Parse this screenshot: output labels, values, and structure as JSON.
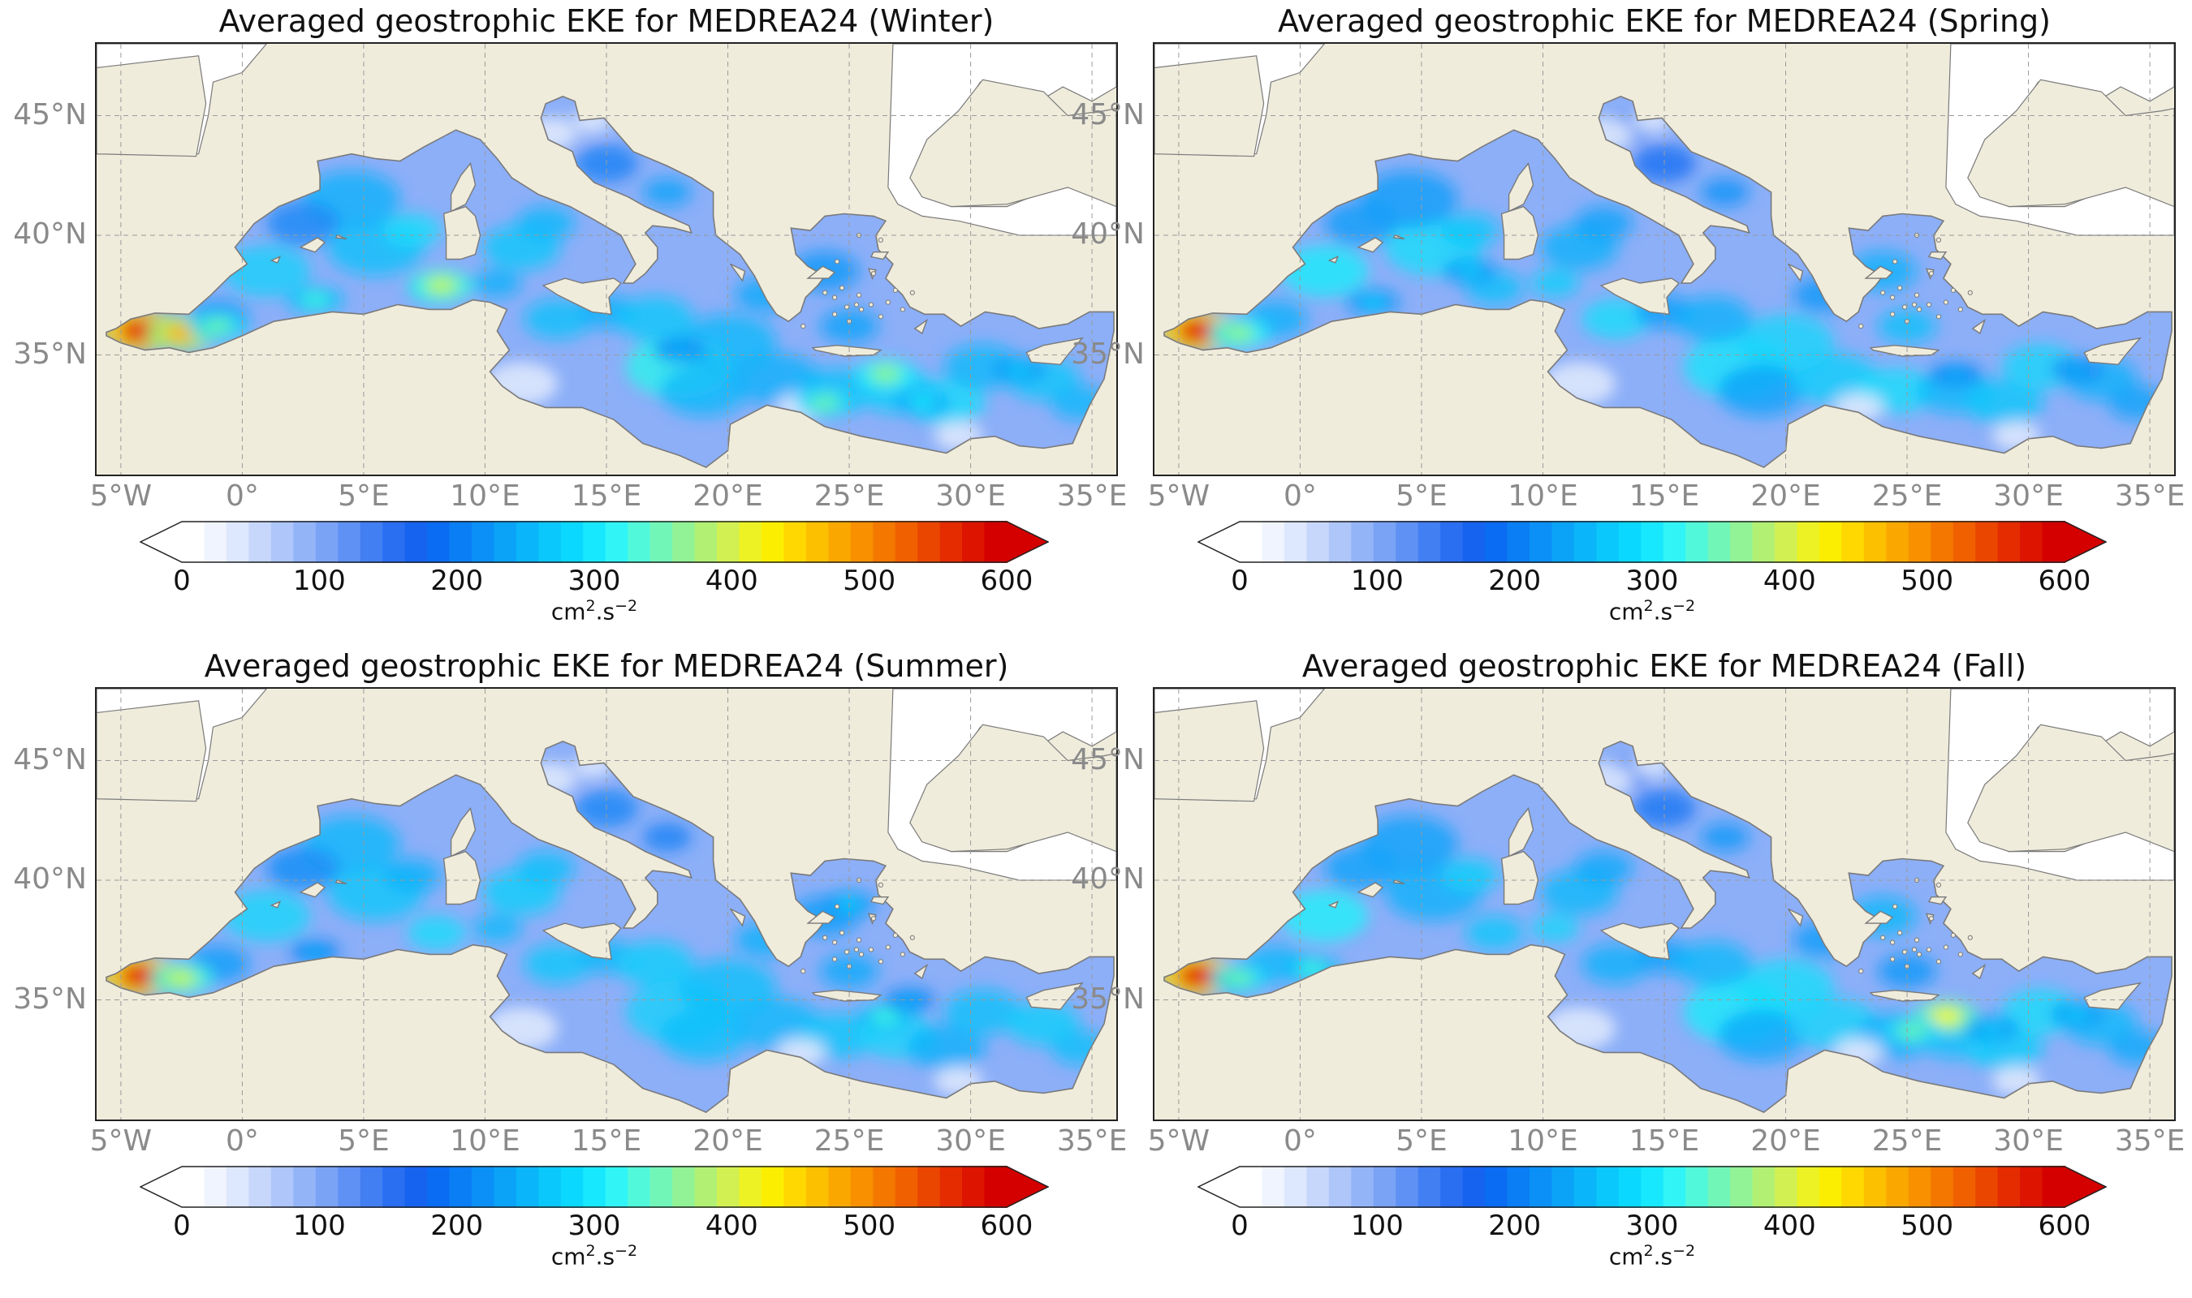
{
  "panels": [
    {
      "id": "winter",
      "title": "Averaged geostrophic EKE for MEDREA24 (Winter)",
      "hotspots": [
        [
          -4.2,
          36.0,
          0.95
        ],
        [
          -2.5,
          35.9,
          0.75
        ],
        [
          -1,
          36.2,
          0.5
        ],
        [
          8.2,
          37.9,
          0.6
        ],
        [
          3,
          37.3,
          0.45
        ],
        [
          26.5,
          34.2,
          0.55
        ],
        [
          24,
          33.0,
          0.5
        ],
        [
          28,
          33.0,
          0.4
        ],
        [
          32,
          34.4,
          0.35
        ],
        [
          18,
          35.2,
          0.3
        ]
      ]
    },
    {
      "id": "spring",
      "title": "Averaged geostrophic EKE for MEDREA24 (Spring)",
      "hotspots": [
        [
          -4.2,
          36.0,
          0.95
        ],
        [
          -2.5,
          35.9,
          0.55
        ],
        [
          3,
          37.2,
          0.35
        ],
        [
          7,
          38.5,
          0.35
        ],
        [
          27,
          34.2,
          0.3
        ],
        [
          32,
          34.4,
          0.3
        ]
      ]
    },
    {
      "id": "summer",
      "title": "Averaged geostrophic EKE for MEDREA24 (Summer)",
      "hotspots": [
        [
          -4.2,
          36.0,
          0.95
        ],
        [
          -2.5,
          35.9,
          0.6
        ],
        [
          3,
          37.0,
          0.3
        ],
        [
          26.5,
          34.3,
          0.45
        ],
        [
          27.5,
          35.0,
          0.3
        ],
        [
          25,
          39.0,
          0.35
        ]
      ]
    },
    {
      "id": "fall",
      "title": "Averaged geostrophic EKE for MEDREA24 (Fall)",
      "hotspots": [
        [
          -4.2,
          36.0,
          0.95
        ],
        [
          -2.5,
          35.9,
          0.5
        ],
        [
          0.5,
          36.3,
          0.45
        ],
        [
          26.6,
          34.3,
          0.65
        ],
        [
          25.2,
          33.7,
          0.5
        ],
        [
          28.5,
          33.8,
          0.35
        ],
        [
          32,
          34.4,
          0.35
        ]
      ]
    }
  ],
  "map": {
    "lon_range": [
      -6,
      36
    ],
    "lat_range": [
      30,
      48
    ],
    "lat_ticks": [
      {
        "value": 45,
        "label": "45°N"
      },
      {
        "value": 40,
        "label": "40°N"
      },
      {
        "value": 35,
        "label": "35°N"
      }
    ],
    "lon_ticks": [
      {
        "value": -5,
        "label": "5°W"
      },
      {
        "value": 0,
        "label": "0°"
      },
      {
        "value": 5,
        "label": "5°E"
      },
      {
        "value": 10,
        "label": "10°E"
      },
      {
        "value": 15,
        "label": "15°E"
      },
      {
        "value": 20,
        "label": "20°E"
      },
      {
        "value": 25,
        "label": "25°E"
      },
      {
        "value": 30,
        "label": "30°E"
      },
      {
        "value": 35,
        "label": "35°E"
      }
    ],
    "land_color": "#efecdc",
    "outside_domain_color": "#ffffff",
    "coast_color": "#7a7a7a",
    "grid": "dashed"
  },
  "colorbar": {
    "ticks": [
      "0",
      "100",
      "200",
      "300",
      "400",
      "500",
      "600"
    ],
    "min": 0,
    "max": 600,
    "unit": "cm",
    "unit_exp1": "2",
    "unit_mid": ".s",
    "unit_exp2": "−2",
    "extend": "both",
    "colors": [
      "#ffffff",
      "#f0f4ff",
      "#dde7fd",
      "#c6d7fb",
      "#aec6fa",
      "#94b4f8",
      "#7aa3f6",
      "#5f91f4",
      "#427ff2",
      "#2a6ef1",
      "#1663f0",
      "#0a6cf2",
      "#0a7ef4",
      "#0a90f6",
      "#0aa3f8",
      "#0ab5fa",
      "#0ac7fc",
      "#0ad8fe",
      "#18e8fe",
      "#30f4f6",
      "#52f8da",
      "#72f6b8",
      "#92f296",
      "#b2f074",
      "#d2f052",
      "#ecf224",
      "#fcee00",
      "#fed800",
      "#fcc000",
      "#faa800",
      "#f89000",
      "#f47800",
      "#f06000",
      "#ea4600",
      "#e42c00",
      "#dc1400",
      "#d40000"
    ]
  }
}
